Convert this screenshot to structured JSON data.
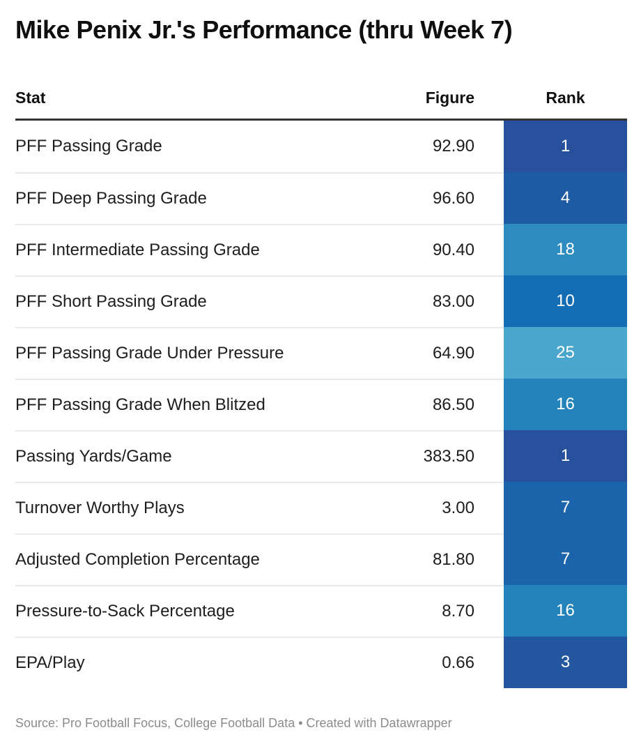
{
  "title": "Mike Penix Jr.'s Performance (thru Week 7)",
  "table": {
    "columns": [
      "Stat",
      "Figure",
      "Rank"
    ],
    "rows": [
      {
        "stat": "PFF Passing Grade",
        "figure": "92.90",
        "rank": "1",
        "rank_color": "#27519c"
      },
      {
        "stat": "PFF Deep Passing Grade",
        "figure": "96.60",
        "rank": "4",
        "rank_color": "#1f5ba4"
      },
      {
        "stat": "PFF Intermediate Passing Grade",
        "figure": "90.40",
        "rank": "18",
        "rank_color": "#2e8cc0"
      },
      {
        "stat": "PFF Short Passing Grade",
        "figure": "83.00",
        "rank": "10",
        "rank_color": "#146db3"
      },
      {
        "stat": "PFF Passing Grade Under Pressure",
        "figure": "64.90",
        "rank": "25",
        "rank_color": "#4aa6cc"
      },
      {
        "stat": "PFF Passing Grade When Blitzed",
        "figure": "86.50",
        "rank": "16",
        "rank_color": "#2583bc"
      },
      {
        "stat": "Passing Yards/Game",
        "figure": "383.50",
        "rank": "1",
        "rank_color": "#27519c"
      },
      {
        "stat": "Turnover Worthy Plays",
        "figure": "3.00",
        "rank": "7",
        "rank_color": "#1b64ac"
      },
      {
        "stat": "Adjusted Completion Percentage",
        "figure": "81.80",
        "rank": "7",
        "rank_color": "#1b64ac"
      },
      {
        "stat": "Pressure-to-Sack Percentage",
        "figure": "8.70",
        "rank": "16",
        "rank_color": "#2583bc"
      },
      {
        "stat": "EPA/Play",
        "figure": "0.66",
        "rank": "3",
        "rank_color": "#22579f"
      }
    ]
  },
  "footer": {
    "text": "Source: Pro Football Focus, College Football Data • Created with Datawrapper"
  },
  "colors": {
    "header_border": "#333333",
    "row_separator": "#e9e9e9",
    "rank_text": "#ffffff",
    "footer_text": "#8b8b8b"
  },
  "chart_data": {
    "type": "table",
    "title": "Mike Penix Jr.'s Performance (thru Week 7)",
    "columns": [
      "Stat",
      "Figure",
      "Rank"
    ],
    "rows": [
      [
        "PFF Passing Grade",
        92.9,
        1
      ],
      [
        "PFF Deep Passing Grade",
        96.6,
        4
      ],
      [
        "PFF Intermediate Passing Grade",
        90.4,
        18
      ],
      [
        "PFF Short Passing Grade",
        83.0,
        10
      ],
      [
        "PFF Passing Grade Under Pressure",
        64.9,
        25
      ],
      [
        "PFF Passing Grade When Blitzed",
        86.5,
        16
      ],
      [
        "Passing Yards/Game",
        383.5,
        1
      ],
      [
        "Turnover Worthy Plays",
        3.0,
        7
      ],
      [
        "Adjusted Completion Percentage",
        81.8,
        7
      ],
      [
        "Pressure-to-Sack Percentage",
        8.7,
        16
      ],
      [
        "EPA/Play",
        0.66,
        3
      ]
    ],
    "notes": "Rank column uses a sequential blue scale: low rank = dark navy, high rank = light blue",
    "source": "Pro Football Focus, College Football Data"
  }
}
